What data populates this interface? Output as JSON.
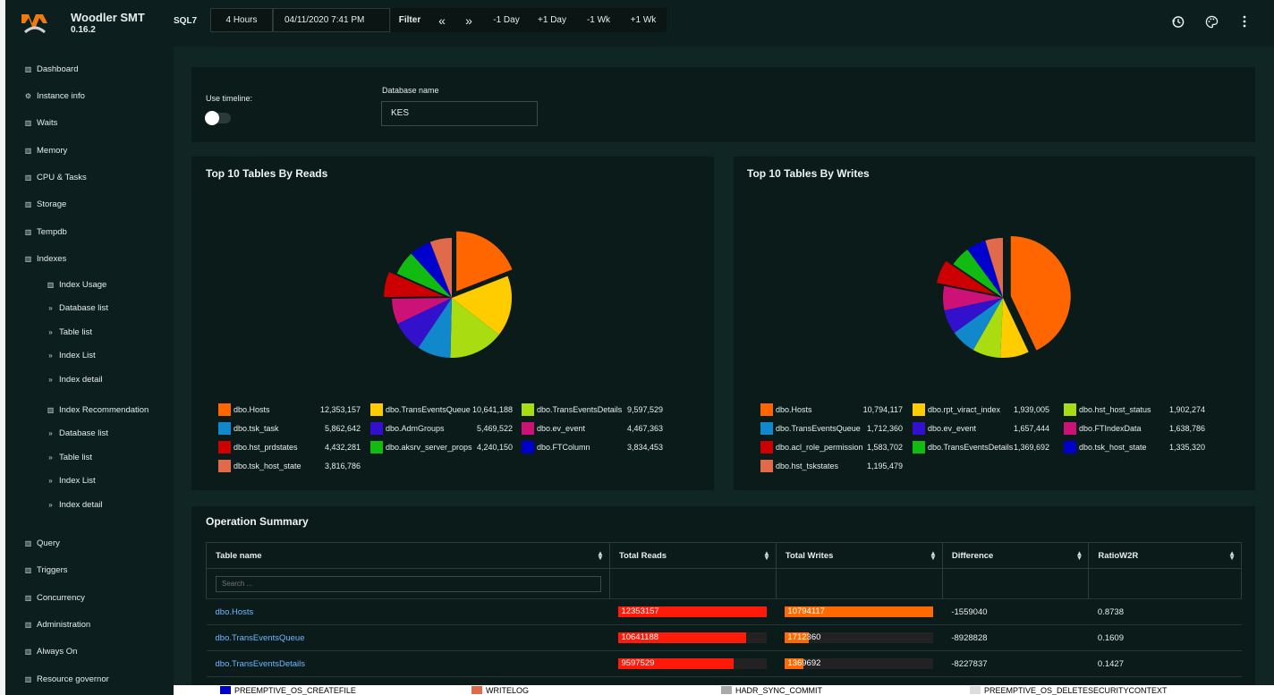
{
  "app": {
    "name": "Woodler SMT",
    "version": "0.16.2",
    "server": "SQL7"
  },
  "toolbar": {
    "range": "4 Hours",
    "datetime": "04/11/2020 7:41 PM",
    "filter": "Filter",
    "prev_prev": "«",
    "next_next": "»",
    "minus_day": "-1 Day",
    "plus_day": "+1 Day",
    "minus_week": "-1 Wk",
    "plus_week": "+1 Wk",
    "icons": [
      "history-icon",
      "palette-icon",
      "more-vert-icon"
    ]
  },
  "sidebar": {
    "items": [
      {
        "label": "Dashboard",
        "icon": "chart-icon"
      },
      {
        "label": "Instance info",
        "icon": "gear-icon"
      },
      {
        "label": "Waits",
        "icon": "chart-icon"
      },
      {
        "label": "Memory",
        "icon": "chart-icon"
      },
      {
        "label": "CPU & Tasks",
        "icon": "chart-icon"
      },
      {
        "label": "Storage",
        "icon": "chart-icon"
      },
      {
        "label": "Tempdb",
        "icon": "chart-icon"
      },
      {
        "label": "Indexes",
        "icon": "chart-icon"
      },
      {
        "label": "Index Usage",
        "icon": "chart-icon"
      },
      {
        "label": "Database list",
        "icon": "chevrons-icon"
      },
      {
        "label": "Table list",
        "icon": "chevrons-icon"
      },
      {
        "label": "Index List",
        "icon": "chevrons-icon"
      },
      {
        "label": "Index detail",
        "icon": "chevrons-icon"
      },
      {
        "label": "Index Recommendation",
        "icon": "chart-icon"
      },
      {
        "label": "Database list",
        "icon": "chevrons-icon"
      },
      {
        "label": "Table list",
        "icon": "chevrons-icon"
      },
      {
        "label": "Index List",
        "icon": "chevrons-icon"
      },
      {
        "label": "Index detail",
        "icon": "chevrons-icon"
      },
      {
        "label": "Query",
        "icon": "chart-icon"
      },
      {
        "label": "Triggers",
        "icon": "chart-icon"
      },
      {
        "label": "Concurrency",
        "icon": "chart-icon"
      },
      {
        "label": "Administration",
        "icon": "chart-icon"
      },
      {
        "label": "Always On",
        "icon": "chart-icon"
      },
      {
        "label": "Resource governor",
        "icon": "chart-icon"
      }
    ]
  },
  "filters": {
    "timeline_label": "Use timeline:",
    "timeline_on": false,
    "db_label": "Database name",
    "db_value": "KES"
  },
  "chart_data": [
    {
      "type": "pie",
      "title": "Top 10 Tables By Reads",
      "slices": [
        {
          "label": "dbo.Hosts",
          "value": 12353157,
          "display": "12,353,157",
          "color": "#ff6600"
        },
        {
          "label": "dbo.TransEventsQueue",
          "value": 10641188,
          "display": "10,641,188",
          "color": "#ffcc00"
        },
        {
          "label": "dbo.TransEventsDetails",
          "value": 9597529,
          "display": "9,597,529",
          "color": "#aadd11"
        },
        {
          "label": "dbo.tsk_task",
          "value": 5862642,
          "display": "5,862,642",
          "color": "#1188cc"
        },
        {
          "label": "dbo.AdmGroups",
          "value": 5469522,
          "display": "5,469,522",
          "color": "#3311cc"
        },
        {
          "label": "dbo.ev_event",
          "value": 4467363,
          "display": "4,467,363",
          "color": "#cc1177"
        },
        {
          "label": "dbo.hst_prdstates",
          "value": 4432281,
          "display": "4,432,281",
          "color": "#cc0000"
        },
        {
          "label": "dbo.aksrv_server_props",
          "value": 4240150,
          "display": "4,240,150",
          "color": "#11bb11"
        },
        {
          "label": "dbo.FTColumn",
          "value": 3834453,
          "display": "3,834,453",
          "color": "#0000cc"
        },
        {
          "label": "dbo.tsk_host_state",
          "value": 3816786,
          "display": "3,816,786",
          "color": "#e06a4a"
        }
      ]
    },
    {
      "type": "pie",
      "title": "Top 10 Tables By Writes",
      "slices": [
        {
          "label": "dbo.Hosts",
          "value": 10794117,
          "display": "10,794,117",
          "color": "#ff6600"
        },
        {
          "label": "dbo.rpt_viract_index",
          "value": 1939005,
          "display": "1,939,005",
          "color": "#ffcc00"
        },
        {
          "label": "dbo.hst_host_status",
          "value": 1902274,
          "display": "1,902,274",
          "color": "#aadd11"
        },
        {
          "label": "dbo.TransEventsQueue",
          "value": 1712360,
          "display": "1,712,360",
          "color": "#1188cc"
        },
        {
          "label": "dbo.ev_event",
          "value": 1657444,
          "display": "1,657,444",
          "color": "#3311cc"
        },
        {
          "label": "dbo.FTIndexData",
          "value": 1638786,
          "display": "1,638,786",
          "color": "#cc1177"
        },
        {
          "label": "dbo.acl_role_permission",
          "value": 1583702,
          "display": "1,583,702",
          "color": "#cc0000"
        },
        {
          "label": "dbo.TransEventsDetails",
          "value": 1369692,
          "display": "1,369,692",
          "color": "#11bb11"
        },
        {
          "label": "dbo.tsk_host_state",
          "value": 1335320,
          "display": "1,335,320",
          "color": "#0000cc"
        },
        {
          "label": "dbo.hst_tskstates",
          "value": 1195479,
          "display": "1,195,479",
          "color": "#e06a4a"
        }
      ]
    }
  ],
  "operation": {
    "title": "Operation Summary",
    "columns": [
      "Table name",
      "Total Reads",
      "Total Writes",
      "Difference",
      "RatioW2R"
    ],
    "search_placeholder": "Search ...",
    "max_reads": 12353157,
    "max_writes": 10794117,
    "rows": [
      {
        "name": "dbo.Hosts",
        "reads": 12353157,
        "reads_text": "12353157",
        "writes": 10794117,
        "writes_text": "10794117",
        "diff": "-1559040",
        "ratio": "0.8738"
      },
      {
        "name": "dbo.TransEventsQueue",
        "reads": 10641188,
        "reads_text": "10641188",
        "writes": 1712360,
        "writes_text": "1712360",
        "diff": "-8928828",
        "ratio": "0.1609"
      },
      {
        "name": "dbo.TransEventsDetails",
        "reads": 9597529,
        "reads_text": "9597529",
        "writes": 1369692,
        "writes_text": "1369692",
        "diff": "-8227837",
        "ratio": "0.1427"
      }
    ],
    "bar_colors": {
      "reads": "#ff1a0a",
      "writes": "#ff6a00"
    }
  },
  "bottom_legend": [
    {
      "label": "PREEMPTIVE_OS_CREATEFILE",
      "color": "#0000cc"
    },
    {
      "label": "WRITELOG",
      "color": "#e06a4a"
    },
    {
      "label": "HADR_SYNC_COMMIT",
      "color": "#aaaaaa"
    },
    {
      "label": "PREEMPTIVE_OS_DELETESECURITYCONTEXT",
      "color": "#dddddd"
    }
  ]
}
